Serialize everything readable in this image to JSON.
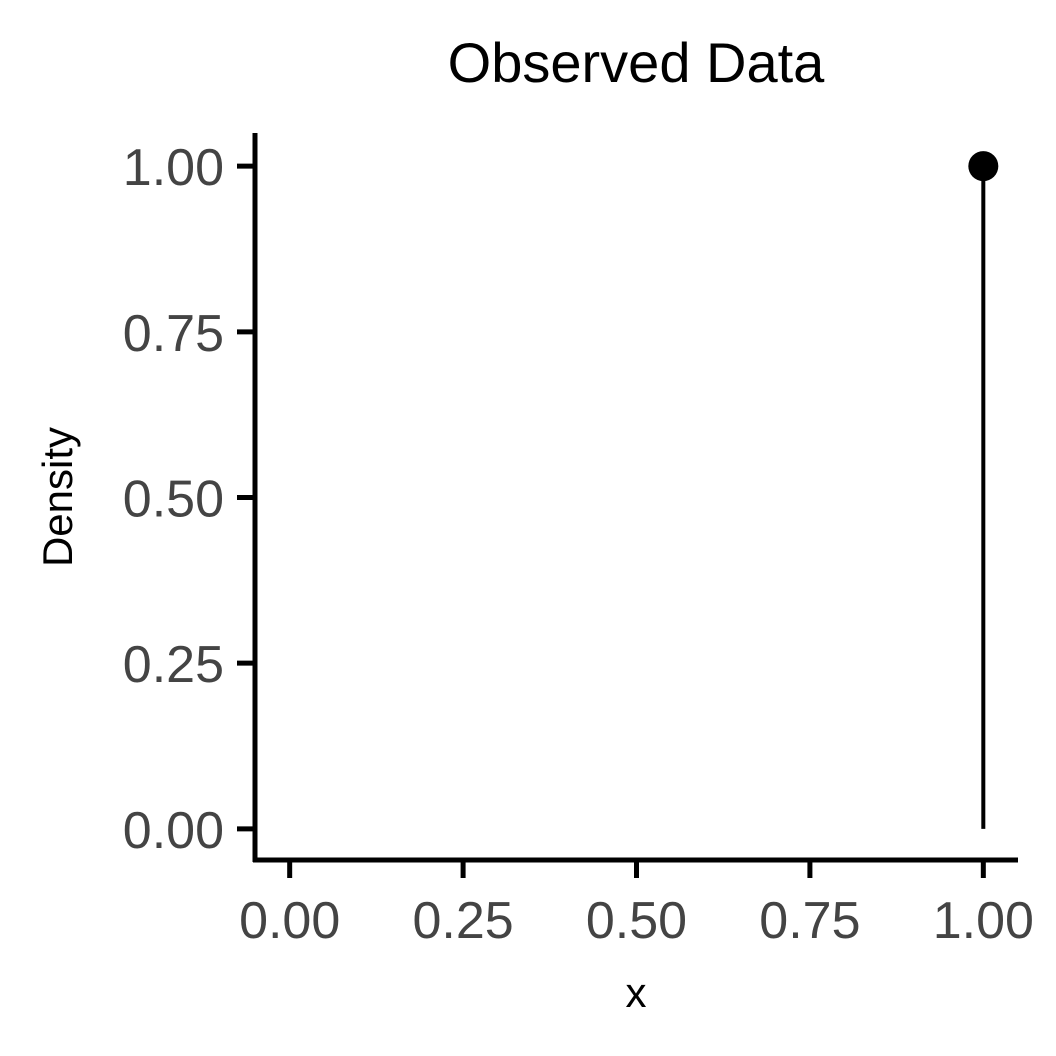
{
  "chart_data": {
    "type": "scatter",
    "title": "Observed Data",
    "xlabel": "x",
    "ylabel": "Density",
    "xlim": [
      -0.05,
      1.05
    ],
    "ylim": [
      -0.05,
      1.05
    ],
    "x_ticks": [
      0,
      0.25,
      0.5,
      0.75,
      1
    ],
    "y_ticks": [
      0,
      0.25,
      0.5,
      0.75,
      1
    ],
    "x_tick_labels": [
      "0.00",
      "0.25",
      "0.50",
      "0.75",
      "1.00"
    ],
    "y_tick_labels": [
      "0.00",
      "0.25",
      "0.50",
      "0.75",
      "1.00"
    ],
    "grid": false,
    "points": [
      {
        "x": 1,
        "y": 1
      }
    ],
    "stems": true,
    "colors": {
      "mark": "#000000",
      "axis": "#000000",
      "tick_label": "#444444"
    }
  }
}
